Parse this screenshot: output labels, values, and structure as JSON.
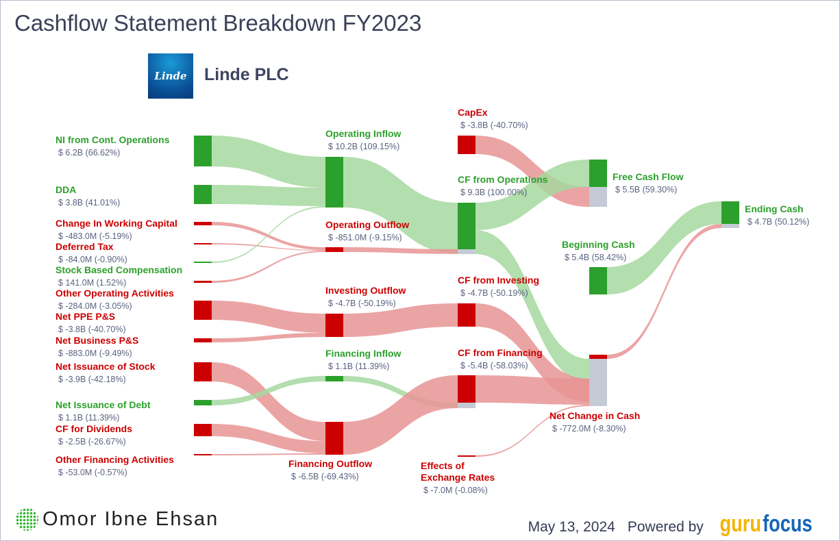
{
  "title": "Cashflow Statement Breakdown FY2023",
  "company": {
    "name": "Linde PLC",
    "logo_text": "Linde"
  },
  "colors": {
    "inflow": "#2ca02c",
    "outflow": "#cc0000",
    "inflow_link": "#a6d8a0",
    "outflow_link": "#e89494",
    "residual": "#c4cad6"
  },
  "nodes": [
    {
      "id": "ni",
      "label": "NI from Cont. Operations",
      "value": "$ 6.2B (66.62%)",
      "type": "in"
    },
    {
      "id": "dda",
      "label": "DDA",
      "value": "$ 3.8B (41.01%)",
      "type": "in"
    },
    {
      "id": "cwc",
      "label": "Change In Working Capital",
      "value": "$ -483.0M (-5.19%)",
      "type": "out"
    },
    {
      "id": "dt",
      "label": "Deferred Tax",
      "value": "$ -84.0M (-0.90%)",
      "type": "out"
    },
    {
      "id": "sbc",
      "label": "Stock Based Compensation",
      "value": "$ 141.0M (1.52%)",
      "type": "in"
    },
    {
      "id": "ooa",
      "label": "Other Operating Activities",
      "value": "$ -284.0M (-3.05%)",
      "type": "out"
    },
    {
      "id": "ppe",
      "label": "Net PPE P&S",
      "value": "$ -3.8B (-40.70%)",
      "type": "out"
    },
    {
      "id": "nbp",
      "label": "Net Business P&S",
      "value": "$ -883.0M (-9.49%)",
      "type": "out"
    },
    {
      "id": "nis",
      "label": "Net Issuance of Stock",
      "value": "$ -3.9B (-42.18%)",
      "type": "out"
    },
    {
      "id": "nid",
      "label": "Net Issuance of Debt",
      "value": "$ 1.1B (11.39%)",
      "type": "in"
    },
    {
      "id": "div",
      "label": "CF for Dividends",
      "value": "$ -2.5B (-26.67%)",
      "type": "out"
    },
    {
      "id": "ofa",
      "label": "Other Financing Activities",
      "value": "$ -53.0M (-0.57%)",
      "type": "out"
    },
    {
      "id": "opin",
      "label": "Operating Inflow",
      "value": "$ 10.2B (109.15%)",
      "type": "in"
    },
    {
      "id": "opout",
      "label": "Operating Outflow",
      "value": "$ -851.0M (-9.15%)",
      "type": "out"
    },
    {
      "id": "invout",
      "label": "Investing Outflow",
      "value": "$ -4.7B (-50.19%)",
      "type": "out"
    },
    {
      "id": "finin",
      "label": "Financing Inflow",
      "value": "$ 1.1B (11.39%)",
      "type": "in"
    },
    {
      "id": "finout",
      "label": "Financing Outflow",
      "value": "$ -6.5B (-69.43%)",
      "type": "out"
    },
    {
      "id": "capex",
      "label": "CapEx",
      "value": "$ -3.8B (-40.70%)",
      "type": "out"
    },
    {
      "id": "cfo",
      "label": "CF from Operations",
      "value": "$ 9.3B (100.00%)",
      "type": "in"
    },
    {
      "id": "cfi",
      "label": "CF from Investing",
      "value": "$ -4.7B (-50.19%)",
      "type": "out"
    },
    {
      "id": "cff",
      "label": "CF from Financing",
      "value": "$ -5.4B (-58.03%)",
      "type": "out"
    },
    {
      "id": "fx",
      "label": "Effects of\nExchange Rates",
      "value": "$ -7.0M (-0.08%)",
      "type": "out"
    },
    {
      "id": "fcf",
      "label": "Free Cash Flow",
      "value": "$ 5.5B (59.30%)",
      "type": "in"
    },
    {
      "id": "bc",
      "label": "Beginning Cash",
      "value": "$ 5.4B (58.42%)",
      "type": "in"
    },
    {
      "id": "nc",
      "label": "Net Change in Cash",
      "value": "$ -772.0M (-8.30%)",
      "type": "out"
    },
    {
      "id": "ec",
      "label": "Ending Cash",
      "value": "$ 4.7B (50.12%)",
      "type": "in"
    }
  ],
  "links": [
    [
      "ni",
      "opin",
      "in"
    ],
    [
      "dda",
      "opin",
      "in"
    ],
    [
      "cwc",
      "opout",
      "out"
    ],
    [
      "dt",
      "opout",
      "out"
    ],
    [
      "sbc",
      "opin",
      "in"
    ],
    [
      "ooa",
      "opout",
      "out"
    ],
    [
      "ppe",
      "invout",
      "out"
    ],
    [
      "nbp",
      "invout",
      "out"
    ],
    [
      "nis",
      "finout",
      "out"
    ],
    [
      "nid",
      "finin",
      "in"
    ],
    [
      "div",
      "finout",
      "out"
    ],
    [
      "ofa",
      "finout",
      "out"
    ],
    [
      "opin",
      "cfo",
      "in"
    ],
    [
      "opout",
      "cfo",
      "out"
    ],
    [
      "invout",
      "cfi",
      "out"
    ],
    [
      "finin",
      "cff",
      "in"
    ],
    [
      "finout",
      "cff",
      "out"
    ],
    [
      "capex",
      "fcf",
      "out"
    ],
    [
      "cfo",
      "fcf",
      "in"
    ],
    [
      "cfo",
      "nc",
      "in"
    ],
    [
      "cfi",
      "nc",
      "out"
    ],
    [
      "cff",
      "nc",
      "out"
    ],
    [
      "fx",
      "nc",
      "out"
    ],
    [
      "bc",
      "ec",
      "in"
    ],
    [
      "nc",
      "ec",
      "out"
    ]
  ],
  "footer": {
    "author": "Omor Ibne Ehsan",
    "date": "May 13, 2024",
    "powered_by": "Powered by",
    "brand_a": "guru",
    "brand_b": "focus"
  }
}
